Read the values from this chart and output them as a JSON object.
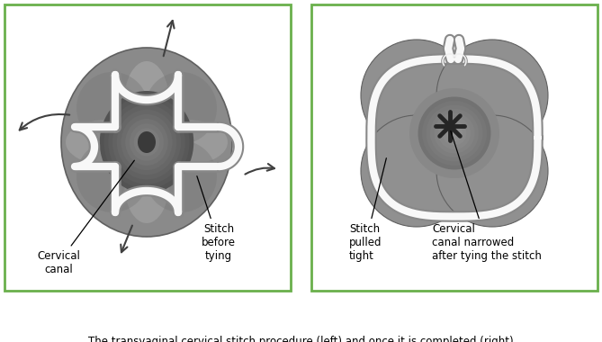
{
  "fig_width": 6.69,
  "fig_height": 3.8,
  "dpi": 100,
  "bg_color": "#ffffff",
  "border_color": "#6ab04c",
  "border_lw": 2.0,
  "caption": "The transvaginal cervical stitch procedure (left) and once it is completed (right)",
  "label_left1": "Cervical\ncanal",
  "label_left2": "Stitch\nbefore\ntying",
  "label_right1": "Stitch\npulled\ntight",
  "label_right2": "Cervical\ncanal narrowed\nafter tying the stitch"
}
